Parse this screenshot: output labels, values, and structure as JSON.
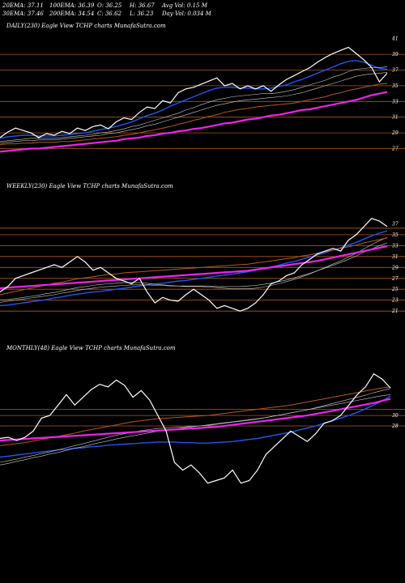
{
  "header": {
    "row1": [
      "20EMA: 37.11",
      "100EMA: 36.39",
      "O: 36.25",
      "H: 36.67",
      "Avg Vol: 0.15  M"
    ],
    "row2": [
      "30EMA: 37.46",
      "200EMA: 34.54",
      "C: 36.62",
      "L: 36.23",
      "Day Vol: 0.034  M"
    ]
  },
  "colors": {
    "background": "#000000",
    "price": "#ffffff",
    "ema_blue": "#2255ee",
    "ema_magenta": "#ee22ee",
    "ema_orange": "#b8571a",
    "ema_gray": "#cccccc",
    "level_line": "#b0581c"
  },
  "chart_data": [
    {
      "type": "line",
      "label": "DAILY(230) Eagle  View  TCHP charts MunafaSutra.com",
      "y_ticks": [
        41,
        39,
        37,
        35,
        33,
        31,
        29,
        27
      ],
      "levels": [
        39,
        37,
        35,
        33,
        31,
        29,
        27
      ],
      "ylim": [
        25.5,
        42
      ],
      "series": [
        {
          "role": "price",
          "color": "#ffffff",
          "values": [
            28.4,
            29.1,
            29.6,
            29.3,
            29.0,
            28.4,
            28.9,
            28.7,
            29.2,
            28.9,
            29.6,
            29.3,
            29.8,
            30.0,
            29.5,
            30.4,
            30.9,
            30.7,
            31.6,
            32.3,
            32.1,
            33.1,
            32.8,
            34.1,
            34.6,
            34.8,
            35.2,
            35.6,
            36.0,
            35.0,
            35.3,
            34.6,
            35.0,
            34.6,
            35.0,
            34.3,
            35.1,
            35.8,
            36.3,
            36.8,
            37.3,
            38.0,
            38.6,
            39.1,
            39.5,
            39.9,
            39.1,
            38.3,
            37.3,
            35.5,
            36.6
          ]
        },
        {
          "role": "ema",
          "color": "#2255ee",
          "values": [
            28.3,
            28.5,
            28.6,
            28.7,
            28.7,
            28.6,
            28.6,
            28.6,
            28.7,
            28.8,
            28.9,
            29.0,
            29.2,
            29.4,
            29.6,
            29.8,
            30.1,
            30.4,
            30.8,
            31.2,
            31.5,
            31.9,
            32.4,
            32.8,
            33.2,
            33.6,
            34.0,
            34.4,
            34.7,
            34.8,
            34.8,
            34.7,
            34.7,
            34.6,
            34.6,
            34.7,
            34.9,
            35.1,
            35.5,
            35.8,
            36.2,
            36.6,
            37.0,
            37.4,
            37.8,
            38.1,
            38.2,
            38.0,
            37.6,
            37.2,
            37.1
          ]
        },
        {
          "role": "ema",
          "color": "#cccccc",
          "values": [
            27.9,
            28.0,
            28.1,
            28.2,
            28.3,
            28.3,
            28.3,
            28.3,
            28.4,
            28.5,
            28.6,
            28.7,
            28.8,
            29.0,
            29.1,
            29.3,
            29.5,
            29.8,
            30.0,
            30.3,
            30.6,
            30.9,
            31.2,
            31.5,
            31.9,
            32.2,
            32.6,
            32.9,
            33.2,
            33.4,
            33.6,
            33.7,
            33.8,
            33.9,
            34.0,
            34.0,
            34.1,
            34.3,
            34.5,
            34.8,
            35.1,
            35.4,
            35.7,
            36.1,
            36.4,
            36.8,
            37.1,
            37.2,
            37.3,
            37.3,
            37.4
          ]
        },
        {
          "role": "ema",
          "color": "#cccccc",
          "values": [
            27.7,
            27.8,
            27.9,
            28.0,
            28.0,
            28.1,
            28.1,
            28.1,
            28.2,
            28.3,
            28.4,
            28.5,
            28.6,
            28.7,
            28.9,
            29.0,
            29.2,
            29.4,
            29.6,
            29.9,
            30.1,
            30.4,
            30.7,
            31.0,
            31.3,
            31.6,
            31.9,
            32.2,
            32.5,
            32.7,
            32.9,
            33.1,
            33.2,
            33.3,
            33.4,
            33.5,
            33.6,
            33.7,
            33.9,
            34.1,
            34.4,
            34.7,
            35.0,
            35.3,
            35.6,
            35.9,
            36.2,
            36.4,
            36.5,
            36.6,
            36.7
          ]
        },
        {
          "role": "ema",
          "color": "#b8571a",
          "values": [
            27.5,
            27.6,
            27.6,
            27.7,
            27.7,
            27.8,
            27.8,
            27.8,
            27.9,
            27.9,
            28.0,
            28.1,
            28.2,
            28.3,
            28.4,
            28.5,
            28.7,
            28.8,
            29.0,
            29.2,
            29.4,
            29.6,
            29.8,
            30.1,
            30.3,
            30.6,
            30.8,
            31.1,
            31.3,
            31.6,
            31.8,
            32.0,
            32.1,
            32.3,
            32.4,
            32.5,
            32.6,
            32.7,
            32.8,
            33.0,
            33.2,
            33.4,
            33.6,
            33.9,
            34.1,
            34.4,
            34.6,
            34.8,
            35.0,
            35.2,
            35.3
          ]
        },
        {
          "role": "ema",
          "color": "#ee22ee",
          "values": [
            26.6,
            26.7,
            26.8,
            26.9,
            27.0,
            27.0,
            27.1,
            27.2,
            27.3,
            27.4,
            27.5,
            27.6,
            27.7,
            27.8,
            27.9,
            28.0,
            28.2,
            28.3,
            28.4,
            28.6,
            28.7,
            28.9,
            29.0,
            29.2,
            29.3,
            29.5,
            29.6,
            29.8,
            30.0,
            30.2,
            30.3,
            30.5,
            30.7,
            30.8,
            31.0,
            31.2,
            31.3,
            31.5,
            31.7,
            31.9,
            32.0,
            32.2,
            32.4,
            32.6,
            32.8,
            33.0,
            33.2,
            33.5,
            33.8,
            34.0,
            34.2
          ]
        }
      ]
    },
    {
      "type": "line",
      "label": "WEEKLY(230) Eagle  View  TCHP charts MunafaSutra.com",
      "y_ticks": [
        37,
        35,
        33,
        31,
        29,
        27,
        25,
        23,
        21
      ],
      "levels": [
        36.2,
        35,
        33,
        31,
        29,
        27,
        25,
        23,
        21
      ],
      "ylim": [
        18.5,
        43
      ],
      "series": [
        {
          "role": "price",
          "color": "#ffffff",
          "values": [
            24.5,
            25.5,
            27.0,
            27.5,
            28.0,
            28.5,
            29.0,
            29.5,
            29.0,
            30.0,
            31.0,
            30.0,
            28.5,
            29.0,
            28.0,
            27.0,
            26.5,
            26.0,
            27.0,
            24.5,
            22.5,
            23.5,
            23.0,
            22.8,
            24.0,
            25.0,
            24.0,
            23.0,
            21.5,
            22.0,
            21.5,
            21.0,
            21.5,
            22.5,
            24.0,
            26.0,
            26.5,
            27.5,
            28.0,
            29.5,
            30.5,
            31.5,
            32.0,
            32.5,
            32.0,
            34.0,
            35.0,
            36.5,
            38.0,
            37.5,
            36.5
          ]
        },
        {
          "role": "ema",
          "color": "#2255ee",
          "values": [
            22.0,
            22.1,
            22.3,
            22.5,
            22.7,
            22.9,
            23.1,
            23.4,
            23.6,
            23.9,
            24.1,
            24.3,
            24.5,
            24.6,
            24.8,
            25.0,
            25.2,
            25.4,
            25.6,
            25.8,
            26.0,
            26.1,
            26.3,
            26.5,
            26.6,
            26.8,
            27.0,
            27.2,
            27.4,
            27.6,
            27.8,
            28.0,
            28.2,
            28.5,
            28.8,
            29.1,
            29.4,
            29.8,
            30.1,
            30.5,
            30.9,
            31.3,
            31.7,
            32.2,
            32.6,
            33.1,
            33.6,
            34.2,
            34.8,
            35.3,
            35.7
          ]
        },
        {
          "role": "ema",
          "color": "#cccccc",
          "values": [
            23.0,
            23.1,
            23.3,
            23.5,
            23.7,
            23.9,
            24.2,
            24.4,
            24.7,
            25.0,
            25.3,
            25.5,
            25.7,
            25.9,
            26.0,
            26.1,
            26.2,
            26.2,
            26.2,
            26.1,
            25.9,
            25.8,
            25.7,
            25.6,
            25.5,
            25.5,
            25.5,
            25.4,
            25.3,
            25.2,
            25.1,
            25.1,
            25.1,
            25.2,
            25.4,
            25.7,
            26.0,
            26.4,
            26.8,
            27.3,
            27.8,
            28.4,
            29.0,
            29.6,
            30.2,
            30.9,
            31.6,
            32.4,
            33.2,
            33.9,
            34.5
          ]
        },
        {
          "role": "ema",
          "color": "#cccccc",
          "values": [
            22.6,
            22.8,
            23.0,
            23.2,
            23.4,
            23.6,
            23.8,
            24.0,
            24.3,
            24.5,
            24.8,
            25.0,
            25.2,
            25.4,
            25.5,
            25.6,
            25.7,
            25.8,
            25.8,
            25.8,
            25.7,
            25.7,
            25.6,
            25.6,
            25.6,
            25.6,
            25.6,
            25.6,
            25.5,
            25.5,
            25.5,
            25.5,
            25.6,
            25.7,
            25.9,
            26.1,
            26.4,
            26.7,
            27.1,
            27.5,
            27.9,
            28.4,
            28.9,
            29.4,
            29.9,
            30.5,
            31.1,
            31.8,
            32.4,
            33.0,
            33.5
          ]
        },
        {
          "role": "ema",
          "color": "#b8571a",
          "values": [
            24.0,
            24.3,
            24.6,
            24.9,
            25.2,
            25.5,
            25.8,
            26.1,
            26.3,
            26.6,
            26.9,
            27.1,
            27.3,
            27.5,
            27.7,
            27.8,
            28.0,
            28.1,
            28.2,
            28.3,
            28.4,
            28.5,
            28.6,
            28.7,
            28.8,
            28.9,
            29.0,
            29.1,
            29.2,
            29.3,
            29.4,
            29.5,
            29.6,
            29.8,
            30.0,
            30.2,
            30.4,
            30.6,
            30.8,
            31.1,
            31.3,
            31.6,
            31.9,
            32.2,
            32.5,
            32.8,
            33.1,
            33.5,
            33.8,
            34.1,
            34.4
          ]
        },
        {
          "role": "ema",
          "color": "#ee22ee",
          "values": [
            25.2,
            25.3,
            25.4,
            25.5,
            25.6,
            25.7,
            25.8,
            25.9,
            26.0,
            26.1,
            26.2,
            26.3,
            26.4,
            26.5,
            26.6,
            26.7,
            26.8,
            26.9,
            27.0,
            27.1,
            27.2,
            27.3,
            27.4,
            27.5,
            27.6,
            27.7,
            27.8,
            27.9,
            28.0,
            28.1,
            28.2,
            28.3,
            28.4,
            28.6,
            28.8,
            29.0,
            29.2,
            29.4,
            29.6,
            29.8,
            30.0,
            30.2,
            30.5,
            30.8,
            31.1,
            31.4,
            31.7,
            32.0,
            32.3,
            32.6,
            32.9
          ]
        }
      ]
    },
    {
      "type": "line",
      "label": "MONTHLY(48) Eagle  View  TCHP charts MunafaSutra.com",
      "y_ticks": [
        30,
        28
      ],
      "levels": [
        31.2,
        30,
        28
      ],
      "ylim": [
        0,
        42
      ],
      "series": [
        {
          "role": "price",
          "color": "#ffffff",
          "values": [
            25.6,
            25.8,
            25.2,
            25.8,
            27.0,
            29.5,
            30.0,
            32.0,
            34.0,
            32.0,
            33.5,
            35.0,
            36.0,
            35.5,
            36.8,
            35.8,
            33.5,
            34.8,
            33.0,
            30.0,
            27.0,
            21.0,
            19.5,
            20.5,
            19.0,
            17.0,
            17.5,
            18.0,
            19.5,
            17.0,
            17.5,
            19.5,
            22.5,
            24.0,
            25.5,
            27.0,
            26.0,
            25.0,
            26.5,
            28.5,
            29.0,
            30.0,
            32.0,
            34.0,
            35.5,
            38.0,
            37.0,
            35.3
          ]
        },
        {
          "role": "ema",
          "color": "#2255ee",
          "values": [
            22.0,
            22.2,
            22.4,
            22.6,
            22.8,
            23.0,
            23.2,
            23.4,
            23.5,
            23.7,
            23.8,
            24.0,
            24.1,
            24.3,
            24.4,
            24.5,
            24.6,
            24.7,
            24.8,
            24.9,
            24.9,
            24.9,
            24.8,
            24.8,
            24.7,
            24.7,
            24.8,
            24.9,
            25.0,
            25.2,
            25.4,
            25.6,
            25.9,
            26.2,
            26.5,
            26.8,
            27.2,
            27.6,
            28.0,
            28.5,
            29.0,
            29.5,
            30.0,
            30.6,
            31.3,
            32.0,
            32.8,
            33.7
          ]
        },
        {
          "role": "ema",
          "color": "#cccccc",
          "values": [
            20.5,
            20.8,
            21.2,
            21.5,
            21.9,
            22.2,
            22.6,
            22.9,
            23.3,
            23.7,
            24.0,
            24.4,
            24.8,
            25.1,
            25.5,
            25.8,
            26.1,
            26.4,
            26.7,
            27.0,
            27.2,
            27.4,
            27.6,
            27.8,
            28.0,
            28.2,
            28.4,
            28.6,
            28.8,
            29.0,
            29.2,
            29.4,
            29.6,
            29.9,
            30.2,
            30.5,
            30.8,
            31.1,
            31.4,
            31.7,
            32.0,
            32.3,
            32.6,
            32.9,
            33.2,
            33.5,
            33.8,
            34.0
          ]
        },
        {
          "role": "ema",
          "color": "#cccccc",
          "values": [
            21.0,
            21.3,
            21.6,
            22.0,
            22.3,
            22.7,
            23.0,
            23.4,
            23.8,
            24.2,
            24.6,
            25.0,
            25.4,
            25.8,
            26.2,
            26.5,
            26.8,
            27.1,
            27.3,
            27.5,
            27.6,
            27.7,
            27.8,
            27.9,
            28.0,
            28.1,
            28.3,
            28.5,
            28.7,
            28.9,
            29.1,
            29.3,
            29.6,
            29.9,
            30.2,
            30.5,
            30.8,
            31.1,
            31.5,
            31.9,
            32.3,
            32.7,
            33.1,
            33.5,
            33.9,
            34.4,
            34.8,
            35.2
          ]
        },
        {
          "role": "ema",
          "color": "#b8571a",
          "values": [
            24.2,
            24.4,
            24.6,
            24.8,
            25.1,
            25.4,
            25.7,
            26.0,
            26.3,
            26.6,
            27.0,
            27.3,
            27.6,
            27.9,
            28.2,
            28.5,
            28.8,
            29.0,
            29.2,
            29.4,
            29.5,
            29.6,
            29.7,
            29.8,
            29.9,
            30.0,
            30.2,
            30.4,
            30.6,
            30.8,
            31.0,
            31.2,
            31.4,
            31.6,
            31.8,
            32.0,
            32.3,
            32.6,
            32.9,
            33.2,
            33.5,
            33.8,
            34.1,
            34.4,
            34.7,
            35.0,
            35.3,
            35.5
          ]
        },
        {
          "role": "ema",
          "color": "#ee22ee",
          "values": [
            25.2,
            25.3,
            25.4,
            25.5,
            25.6,
            25.7,
            25.8,
            25.9,
            26.0,
            26.1,
            26.2,
            26.3,
            26.4,
            26.5,
            26.6,
            26.7,
            26.8,
            26.9,
            27.0,
            27.1,
            27.2,
            27.3,
            27.4,
            27.5,
            27.6,
            27.7,
            27.8,
            28.0,
            28.2,
            28.4,
            28.6,
            28.8,
            29.0,
            29.2,
            29.4,
            29.6,
            29.8,
            30.0,
            30.3,
            30.6,
            30.9,
            31.2,
            31.5,
            31.8,
            32.1,
            32.4,
            32.8,
            33.2
          ]
        }
      ]
    }
  ]
}
